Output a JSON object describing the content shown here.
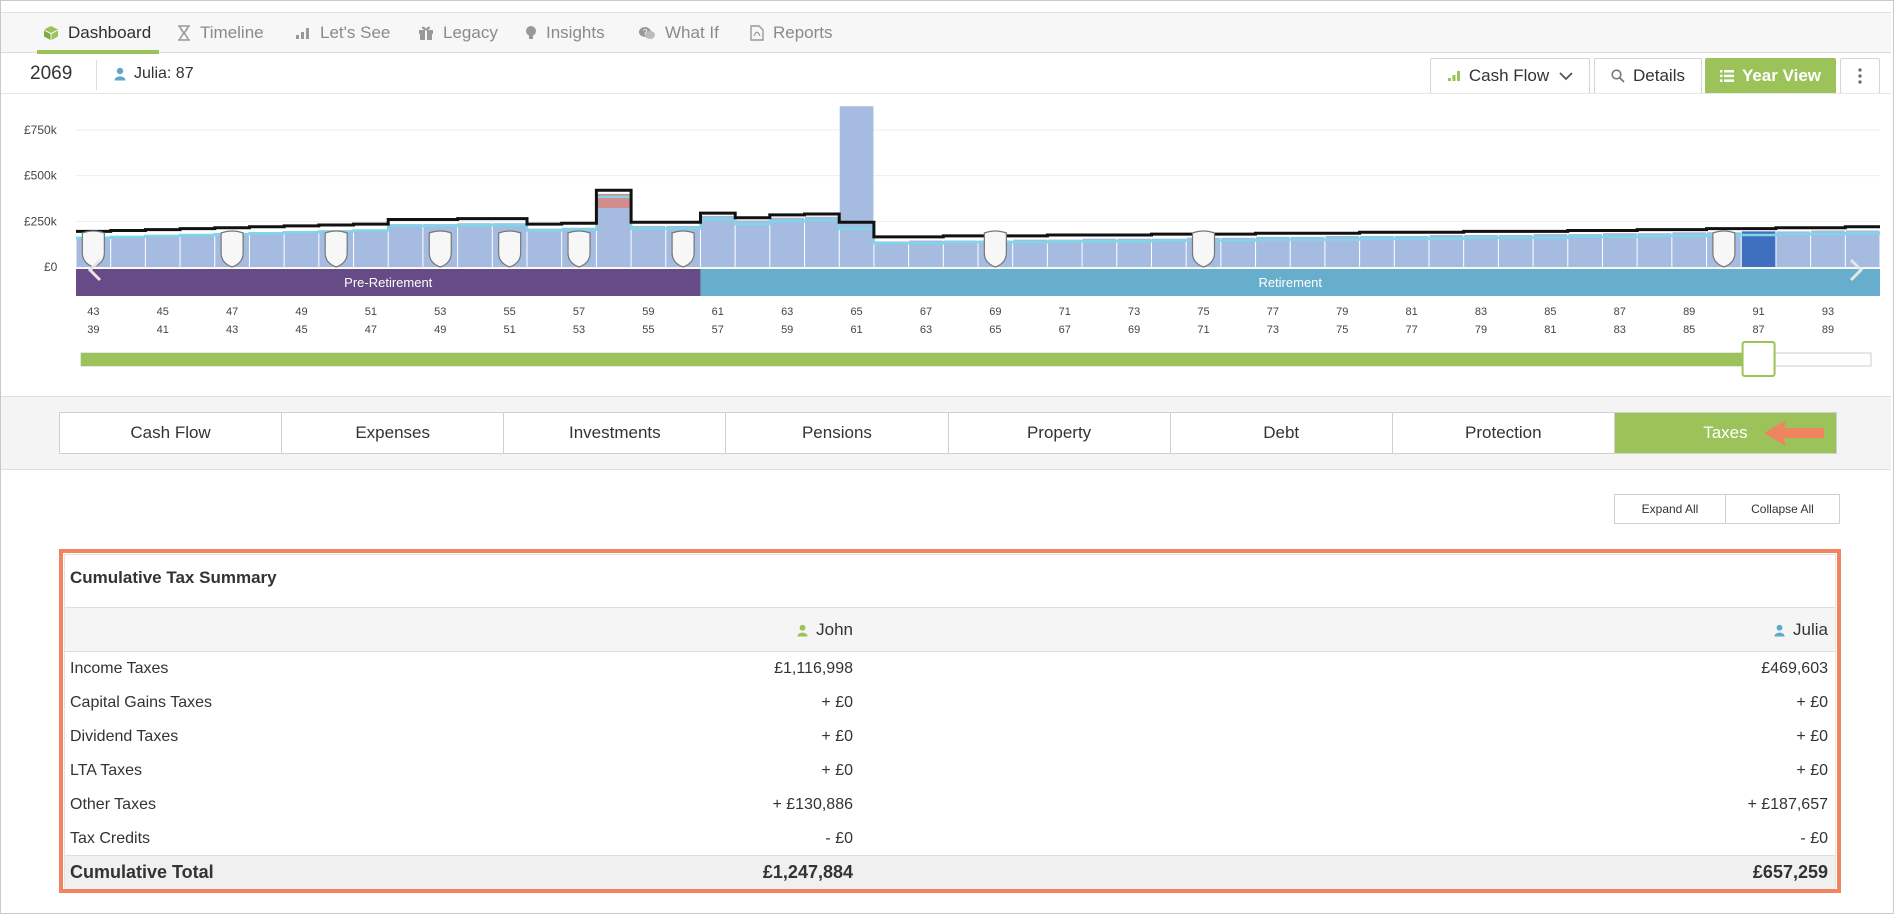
{
  "nav": {
    "tabs": [
      {
        "label": "Dashboard",
        "icon": "cube-icon",
        "active": true
      },
      {
        "label": "Timeline",
        "icon": "hourglass-icon"
      },
      {
        "label": "Let's See",
        "icon": "bar-chart-icon"
      },
      {
        "label": "Legacy",
        "icon": "gift-icon"
      },
      {
        "label": "Insights",
        "icon": "lightbulb-icon"
      },
      {
        "label": "What If",
        "icon": "chat-question-icon"
      },
      {
        "label": "Reports",
        "icon": "pdf-document-icon"
      }
    ]
  },
  "header": {
    "year": "2069",
    "person": "Julia: 87",
    "view_select": "Cash Flow",
    "details_label": "Details",
    "year_view_label": "Year View"
  },
  "colors": {
    "accent_green": "#9bc35a",
    "pre_retirement": "#664b86",
    "retirement": "#66aecb",
    "bar": "#a6bbe0",
    "bar_selected": "#3f6fbf",
    "highlight": "#f0845f"
  },
  "chart_data": {
    "type": "bar",
    "title": "",
    "y_tick_labels": [
      "£0",
      "£250k",
      "£500k",
      "£750k"
    ],
    "ylim": [
      0,
      900000
    ],
    "ages_person1": [
      "43",
      "45",
      "47",
      "49",
      "51",
      "53",
      "55",
      "57",
      "59",
      "61",
      "63",
      "65",
      "67",
      "69",
      "71",
      "73",
      "75",
      "77",
      "79",
      "81",
      "83",
      "85",
      "87",
      "89",
      "91",
      "93"
    ],
    "ages_person2": [
      "39",
      "41",
      "43",
      "45",
      "47",
      "49",
      "51",
      "53",
      "55",
      "57",
      "59",
      "61",
      "63",
      "65",
      "67",
      "69",
      "71",
      "73",
      "75",
      "77",
      "79",
      "81",
      "83",
      "85",
      "87",
      "89"
    ],
    "phases": [
      {
        "label": "Pre-Retirement",
        "from_age": 43,
        "to_age": 60
      },
      {
        "label": "Retirement",
        "from_age": 61,
        "to_age": 94
      }
    ],
    "values": [
      165000,
      170000,
      175000,
      180000,
      185000,
      190000,
      195000,
      200000,
      205000,
      235000,
      235000,
      240000,
      240000,
      210000,
      215000,
      400000,
      225000,
      225000,
      280000,
      255000,
      270000,
      275000,
      880000,
      140000,
      145000,
      145000,
      145000,
      150000,
      150000,
      155000,
      155000,
      155000,
      160000,
      160000,
      165000,
      165000,
      170000,
      170000,
      170000,
      175000,
      175000,
      175000,
      180000,
      180000,
      185000,
      185000,
      190000,
      190000,
      195000,
      195000,
      200000,
      200000
    ],
    "outflow": [
      195000,
      200000,
      205000,
      210000,
      215000,
      220000,
      225000,
      230000,
      235000,
      260000,
      260000,
      265000,
      265000,
      235000,
      240000,
      420000,
      245000,
      245000,
      295000,
      270000,
      285000,
      290000,
      245000,
      165000,
      165000,
      170000,
      170000,
      170000,
      175000,
      175000,
      175000,
      180000,
      180000,
      180000,
      185000,
      185000,
      185000,
      190000,
      190000,
      190000,
      195000,
      195000,
      195000,
      200000,
      200000,
      205000,
      205000,
      210000,
      210000,
      215000,
      215000,
      220000
    ],
    "event_ages": [
      43,
      47,
      50,
      53,
      55,
      57,
      60,
      69,
      75,
      90
    ],
    "selected_age": 91
  },
  "categories": {
    "tabs": [
      "Cash Flow",
      "Expenses",
      "Investments",
      "Pensions",
      "Property",
      "Debt",
      "Protection",
      "Taxes"
    ],
    "active": "Taxes"
  },
  "actions": {
    "expand_all": "Expand All",
    "collapse_all": "Collapse All"
  },
  "summary": {
    "title": "Cumulative Tax Summary",
    "col1": "John",
    "col2": "Julia",
    "rows": [
      {
        "label": "Income Taxes",
        "john": "£1,116,998",
        "julia": "£469,603"
      },
      {
        "label": "Capital Gains Taxes",
        "john": "+ £0",
        "julia": "+ £0"
      },
      {
        "label": "Dividend Taxes",
        "john": "+ £0",
        "julia": "+ £0"
      },
      {
        "label": "LTA Taxes",
        "john": "+ £0",
        "julia": "+ £0"
      },
      {
        "label": "Other Taxes",
        "john": "+ £130,886",
        "julia": "+ £187,657"
      },
      {
        "label": "Tax Credits",
        "john": "- £0",
        "julia": "- £0"
      }
    ],
    "total": {
      "label": "Cumulative Total",
      "john": "£1,247,884",
      "julia": "£657,259"
    }
  }
}
